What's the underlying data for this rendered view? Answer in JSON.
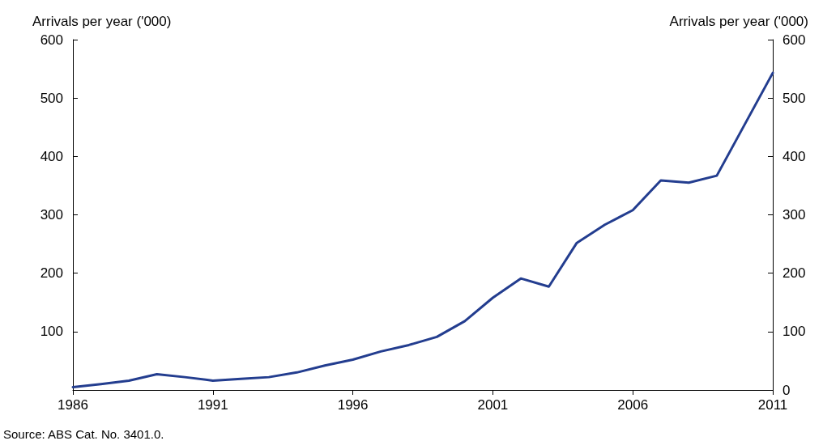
{
  "chart_data": {
    "type": "line",
    "x": [
      1986,
      1987,
      1988,
      1989,
      1990,
      1991,
      1992,
      1993,
      1994,
      1995,
      1996,
      1997,
      1998,
      1999,
      2000,
      2001,
      2002,
      2003,
      2004,
      2005,
      2006,
      2007,
      2008,
      2009,
      2010,
      2011
    ],
    "series": [
      {
        "color": "#233d8f",
        "values": [
          5,
          10,
          16,
          27,
          22,
          16,
          19,
          22,
          30,
          42,
          52,
          66,
          77,
          91,
          118,
          158,
          191,
          177,
          252,
          283,
          308,
          359,
          355,
          367,
          455,
          543
        ]
      }
    ],
    "xlim": [
      1986,
      2011
    ],
    "xticks": [
      1986,
      1991,
      1996,
      2001,
      2006,
      2011
    ],
    "ylim": [
      0,
      600
    ],
    "yticks": [
      {
        "value": 0,
        "label": null
      },
      100,
      200,
      300,
      400,
      500,
      600
    ],
    "y2lim": [
      0,
      600
    ],
    "y2ticks": [
      0,
      100,
      200,
      300,
      400,
      500,
      600
    ],
    "ylabel": "Arrivals per year ('000)",
    "y2label": "Arrivals per year ('000)",
    "annotations": [
      "Source: ABS Cat. No. 3401.0."
    ],
    "grid": false,
    "marker": "none",
    "line_style": "solid"
  }
}
